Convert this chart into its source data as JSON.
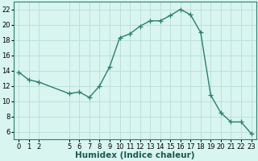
{
  "x": [
    0,
    1,
    2,
    5,
    6,
    7,
    8,
    9,
    10,
    11,
    12,
    13,
    14,
    15,
    16,
    17,
    18,
    19,
    20,
    21,
    22,
    23
  ],
  "y": [
    13.8,
    12.8,
    12.5,
    11.0,
    11.2,
    10.5,
    12.0,
    14.5,
    18.3,
    18.8,
    19.8,
    20.5,
    20.5,
    21.2,
    22.0,
    21.3,
    19.0,
    10.8,
    8.5,
    7.3,
    7.3,
    5.8
  ],
  "line_color": "#2e7d6e",
  "marker": "+",
  "markersize": 4,
  "linewidth": 1.0,
  "background_color": "#d8f5f0",
  "grid_color": "#b8dcd8",
  "xlabel": "Humidex (Indice chaleur)",
  "xlim": [
    -0.5,
    23.5
  ],
  "ylim": [
    5,
    23
  ],
  "yticks": [
    6,
    8,
    10,
    12,
    14,
    16,
    18,
    20,
    22
  ],
  "xticks": [
    0,
    1,
    2,
    5,
    6,
    7,
    8,
    9,
    10,
    11,
    12,
    13,
    14,
    15,
    16,
    17,
    18,
    19,
    20,
    21,
    22,
    23
  ],
  "xlabel_fontsize": 7.5,
  "tick_fontsize": 6,
  "markeredgewidth": 0.9
}
